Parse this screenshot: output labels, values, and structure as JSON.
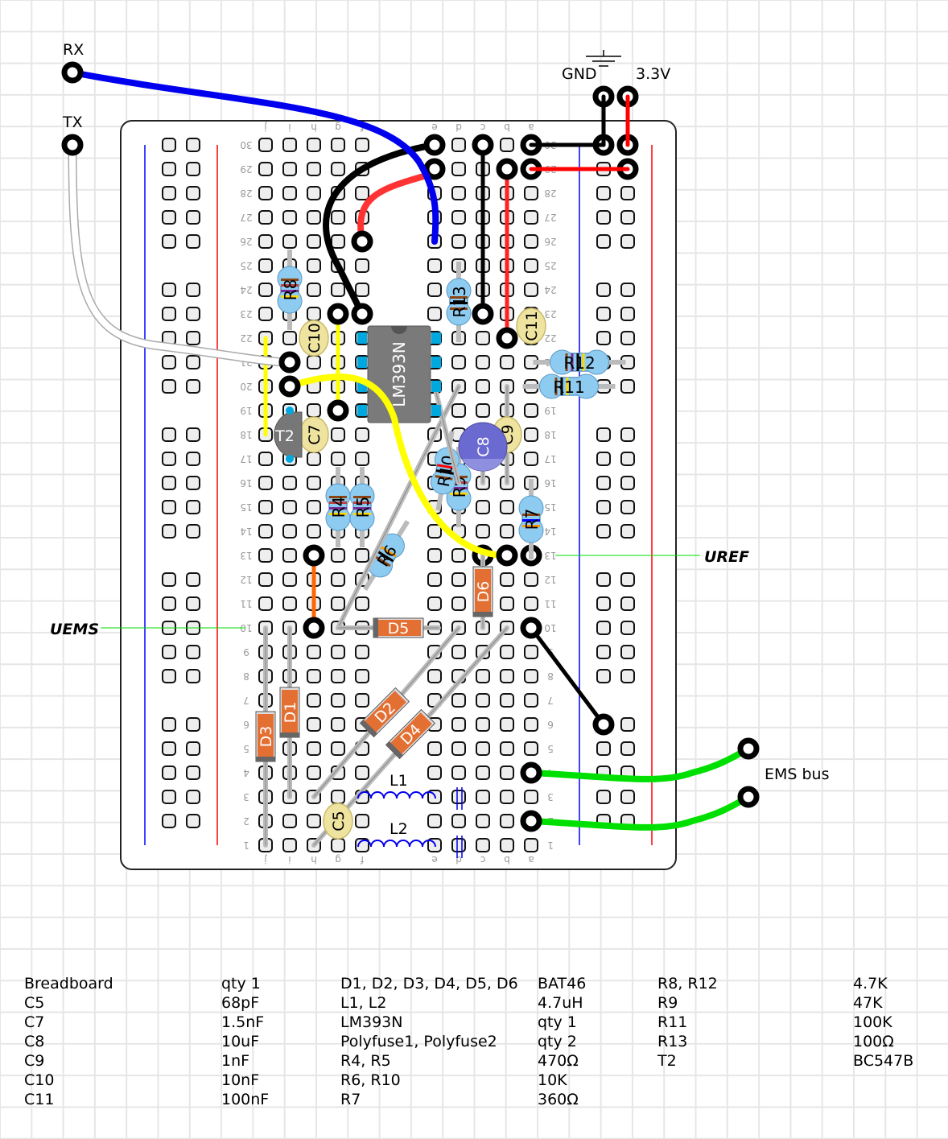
{
  "board": {
    "left_letters": [
      "j",
      "i",
      "h",
      "g",
      "f"
    ],
    "right_letters": [
      "e",
      "d",
      "c",
      "b",
      "a"
    ],
    "row_numbers": [
      1,
      2,
      3,
      4,
      5,
      6,
      7,
      8,
      9,
      10,
      11,
      12,
      13,
      14,
      15,
      16,
      17,
      18,
      19,
      20,
      21,
      22,
      23,
      24,
      25,
      26,
      27,
      28,
      29,
      30
    ]
  },
  "labels": {
    "rx": "RX",
    "tx": "TX",
    "gnd": "GND",
    "v33": "3.3V",
    "uems": "UEMS",
    "uref": "UREF",
    "ems_bus": "EMS bus",
    "l1": "L1",
    "l2": "L2"
  },
  "components": {
    "chip": "LM393N",
    "r8": "R8",
    "r13": "R13",
    "r12": "R12",
    "r11": "R11",
    "r4": "R4",
    "r5": "R5",
    "r10": "R10",
    "r9": "R9",
    "r7": "R7",
    "r6": "R6",
    "d1": "D1",
    "d2": "D2",
    "d3": "D3",
    "d4": "D4",
    "d5": "D5",
    "d6": "D6",
    "c5": "C5",
    "c7": "C7",
    "c8": "C8",
    "c9": "C9",
    "c10": "C10",
    "c11": "C11",
    "t2": "T2"
  },
  "colors": {
    "wire_blue": "#0000ee",
    "wire_red": "#ff3333",
    "wire_black": "#000000",
    "wire_yellow": "#ffff00",
    "wire_green": "#00e000",
    "wire_orange": "#ff6600",
    "wire_white": "#ffffff",
    "resistor": "#8ecbf0",
    "diode": "#e46f32",
    "ceramic_cap": "#efe3a0",
    "electrolytic_cap": "#6a6ad0",
    "chip": "#7a7a7a",
    "rail_plus": "#ff0000",
    "rail_minus": "#0000ff"
  },
  "bom": {
    "columns": [
      [
        "Breadboard",
        "C5",
        "C7",
        "C8",
        "C9",
        "C10",
        "C11"
      ],
      [
        "qty 1",
        "68pF",
        "1.5nF",
        "10uF",
        "1nF",
        "10nF",
        "100nF"
      ],
      [
        "D1, D2, D3, D4, D5, D6",
        "L1, L2",
        "LM393N",
        "Polyfuse1, Polyfuse2",
        "R4, R5",
        "R6, R10",
        "R7"
      ],
      [
        "BAT46",
        "4.7uH",
        "qty 1",
        "qty 2",
        "470Ω",
        "10K",
        "360Ω"
      ],
      [
        "R8, R12",
        "R9",
        "R11",
        "R13",
        "T2"
      ],
      [
        "4.7K",
        "47K",
        "100K",
        "100Ω",
        "BC547B"
      ]
    ]
  }
}
